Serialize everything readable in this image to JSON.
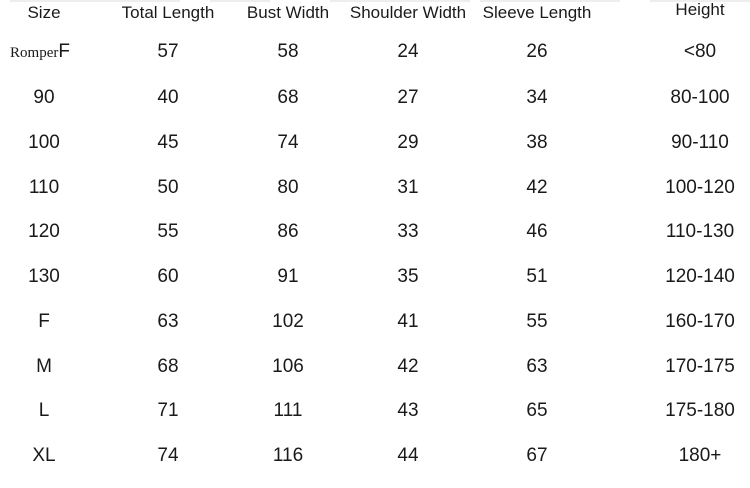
{
  "table": {
    "headers": [
      "Size",
      "Total Length",
      "Bust Width",
      "Shoulder Width",
      "Sleeve Length",
      "Height"
    ],
    "romper_prefix": "Romper",
    "rows": [
      [
        "F",
        "57",
        "58",
        "24",
        "26",
        "<80"
      ],
      [
        "90",
        "40",
        "68",
        "27",
        "34",
        "80-100"
      ],
      [
        "100",
        "45",
        "74",
        "29",
        "38",
        "90-110"
      ],
      [
        "110",
        "50",
        "80",
        "31",
        "42",
        "100-120"
      ],
      [
        "120",
        "55",
        "86",
        "33",
        "46",
        "110-130"
      ],
      [
        "130",
        "60",
        "91",
        "35",
        "51",
        "120-140"
      ],
      [
        "F",
        "63",
        "102",
        "41",
        "55",
        "160-170"
      ],
      [
        "M",
        "68",
        "106",
        "42",
        "63",
        "170-175"
      ],
      [
        "L",
        "71",
        "111",
        "43",
        "65",
        "175-180"
      ],
      [
        "XL",
        "74",
        "116",
        "44",
        "67",
        "180+"
      ]
    ]
  }
}
